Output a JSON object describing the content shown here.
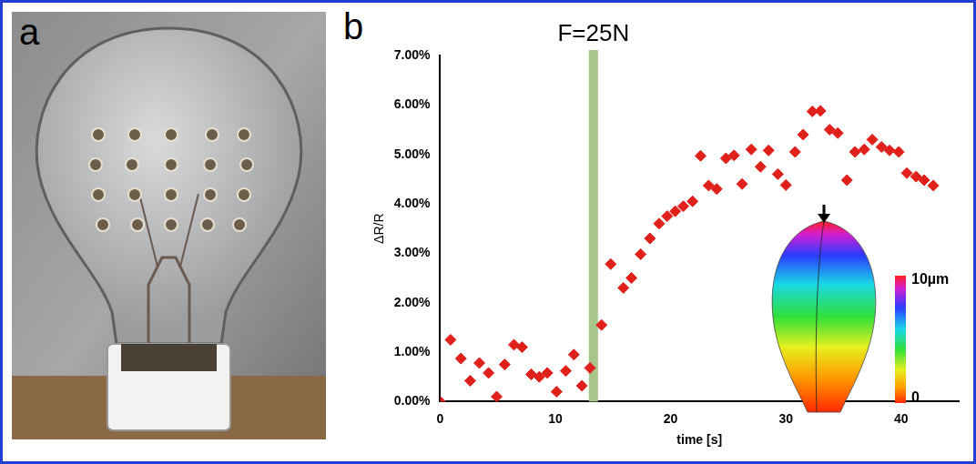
{
  "panel_labels": [
    "a",
    "b"
  ],
  "chart_data": {
    "type": "scatter",
    "x_label": "time [s]",
    "y_label": "ΔR/R",
    "x": [
      0,
      0.9,
      1.8,
      2.6,
      3.4,
      4.2,
      4.9,
      5.6,
      6.4,
      7.1,
      7.9,
      8.6,
      9.3,
      10.1,
      10.9,
      11.6,
      12.3,
      13.0,
      14.0,
      14.8,
      15.9,
      16.6,
      17.4,
      18.2,
      19.0,
      19.7,
      20.4,
      21.1,
      21.9,
      22.6,
      23.3,
      24.0,
      24.8,
      25.5,
      26.2,
      27.0,
      27.8,
      28.5,
      29.3,
      30.0,
      30.8,
      31.5,
      32.3,
      33.0,
      33.8,
      34.5,
      35.3,
      36.0,
      36.8,
      37.5,
      38.3,
      39.0,
      39.8,
      40.5,
      41.3,
      42.0,
      42.8
    ],
    "values": [
      0.0,
      1.25,
      0.87,
      0.42,
      0.78,
      0.58,
      0.1,
      0.75,
      1.15,
      1.1,
      0.55,
      0.5,
      0.58,
      0.2,
      0.62,
      0.95,
      0.32,
      0.68,
      1.55,
      2.78,
      2.3,
      2.5,
      2.98,
      3.3,
      3.6,
      3.75,
      3.85,
      3.95,
      4.05,
      4.97,
      4.37,
      4.3,
      4.92,
      4.98,
      4.4,
      5.1,
      4.75,
      5.08,
      4.6,
      4.38,
      5.05,
      5.4,
      5.87,
      5.88,
      5.5,
      5.43,
      4.48,
      5.05,
      5.1,
      5.3,
      5.15,
      5.08,
      5.05,
      4.62,
      4.55,
      4.48,
      4.37
    ],
    "color": "#e0201b",
    "marker": "diamond",
    "xlim": [
      0,
      45
    ],
    "xticks": [
      0,
      10,
      20,
      30,
      40
    ],
    "ylim": [
      0,
      7
    ],
    "yticks": [
      {
        "value": 0,
        "label": "0.00%"
      },
      {
        "value": 1,
        "label": "1.00%"
      },
      {
        "value": 2,
        "label": "2.00%"
      },
      {
        "value": 3,
        "label": "3.00%"
      },
      {
        "value": 4,
        "label": "4.00%"
      },
      {
        "value": 5,
        "label": "5.00%"
      },
      {
        "value": 6,
        "label": "6.00%"
      },
      {
        "value": 7,
        "label": "7.00%"
      }
    ],
    "grid": false,
    "annotations": [
      {
        "text": "F=25N",
        "x": 13.3,
        "color": "#a8c58b"
      }
    ],
    "colorbar": {
      "range": [
        0,
        10
      ],
      "ticks": [
        {
          "value": 10,
          "label": "10µm"
        },
        0
      ]
    }
  }
}
